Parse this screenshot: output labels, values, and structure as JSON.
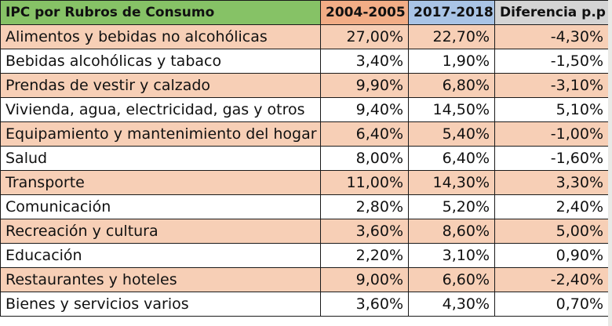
{
  "table": {
    "headers": [
      "IPC por Rubros de Consumo",
      "2004-2005",
      "2017-2018",
      "Diferencia p.p"
    ],
    "rows": [
      [
        "Alimentos y bebidas no alcohólicas",
        "27,00%",
        "22,70%",
        "-4,30%"
      ],
      [
        "Bebidas alcohólicas y tabaco",
        "3,40%",
        "1,90%",
        "-1,50%"
      ],
      [
        "Prendas de vestir y calzado",
        "9,90%",
        "6,80%",
        "-3,10%"
      ],
      [
        "Vivienda, agua, electricidad, gas y otros",
        "9,40%",
        "14,50%",
        "5,10%"
      ],
      [
        "Equipamiento y mantenimiento del hogar",
        "6,40%",
        "5,40%",
        "-1,00%"
      ],
      [
        "Salud",
        "8,00%",
        "6,40%",
        "-1,60%"
      ],
      [
        "Transporte",
        "11,00%",
        "14,30%",
        "3,30%"
      ],
      [
        "Comunicación",
        "2,80%",
        "5,20%",
        "2,40%"
      ],
      [
        "Recreación y cultura",
        "3,60%",
        "8,60%",
        "5,00%"
      ],
      [
        "Educación",
        "2,20%",
        "3,10%",
        "0,90%"
      ],
      [
        "Restaurantes y hoteles",
        "9,00%",
        "6,60%",
        "-2,40%"
      ],
      [
        "Bienes y servicios varios",
        "3,60%",
        "4,30%",
        "0,70%"
      ]
    ]
  },
  "colors": {
    "header_category": "#86c266",
    "header_2004": "#f2ad86",
    "header_2017": "#a9c4e6",
    "header_diff": "#d4d4d4",
    "row_shade": "#f7cfb6",
    "row_plain": "#ffffff"
  }
}
